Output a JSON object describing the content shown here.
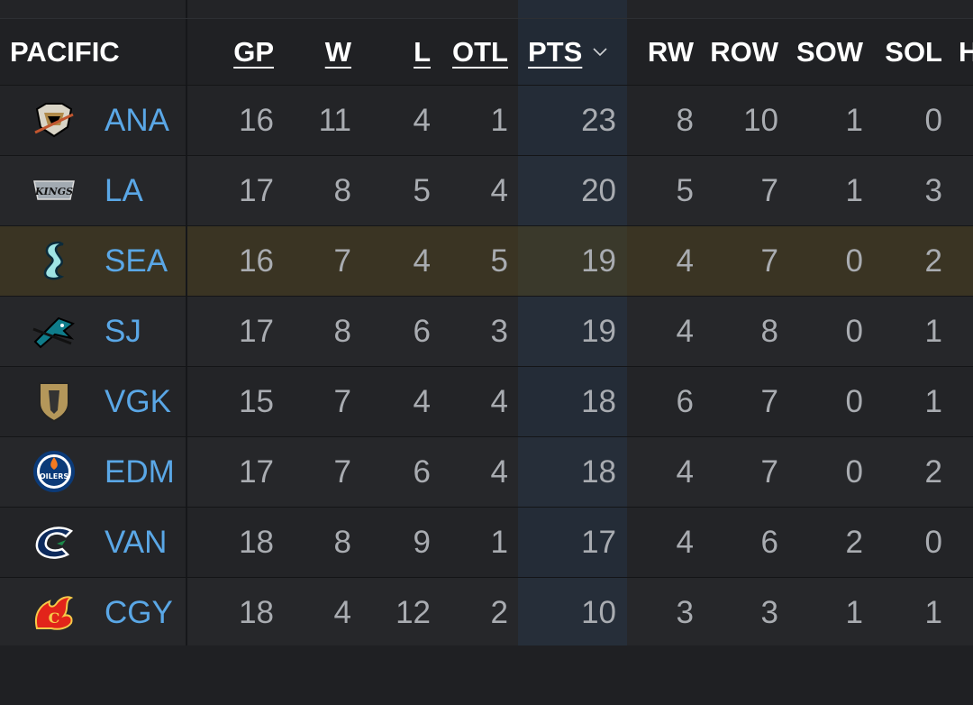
{
  "division": "PACIFIC",
  "columns": {
    "gp": "GP",
    "w": "W",
    "l": "L",
    "otl": "OTL",
    "pts": "PTS",
    "rw": "RW",
    "row": "ROW",
    "sow": "SOW",
    "sol": "SOL",
    "extra": "H"
  },
  "sort_indicator": "chevron-down",
  "colors": {
    "team_link": "#5aa7e6",
    "highlight_row": "#3a3423",
    "background": "#202124"
  },
  "teams": [
    {
      "abbr": "ANA",
      "logo": "ducks-logo",
      "gp": "16",
      "w": "11",
      "l": "4",
      "otl": "1",
      "pts": "23",
      "rw": "8",
      "row": "10",
      "sow": "1",
      "sol": "0"
    },
    {
      "abbr": "LA",
      "logo": "kings-logo",
      "gp": "17",
      "w": "8",
      "l": "5",
      "otl": "4",
      "pts": "20",
      "rw": "5",
      "row": "7",
      "sow": "1",
      "sol": "3"
    },
    {
      "abbr": "SEA",
      "logo": "kraken-logo",
      "gp": "16",
      "w": "7",
      "l": "4",
      "otl": "5",
      "pts": "19",
      "rw": "4",
      "row": "7",
      "sow": "0",
      "sol": "2"
    },
    {
      "abbr": "SJ",
      "logo": "sharks-logo",
      "gp": "17",
      "w": "8",
      "l": "6",
      "otl": "3",
      "pts": "19",
      "rw": "4",
      "row": "8",
      "sow": "0",
      "sol": "1"
    },
    {
      "abbr": "VGK",
      "logo": "golden-knights-logo",
      "gp": "15",
      "w": "7",
      "l": "4",
      "otl": "4",
      "pts": "18",
      "rw": "6",
      "row": "7",
      "sow": "0",
      "sol": "1"
    },
    {
      "abbr": "EDM",
      "logo": "oilers-logo",
      "gp": "17",
      "w": "7",
      "l": "6",
      "otl": "4",
      "pts": "18",
      "rw": "4",
      "row": "7",
      "sow": "0",
      "sol": "2"
    },
    {
      "abbr": "VAN",
      "logo": "canucks-logo",
      "gp": "18",
      "w": "8",
      "l": "9",
      "otl": "1",
      "pts": "17",
      "rw": "4",
      "row": "6",
      "sow": "2",
      "sol": "0"
    },
    {
      "abbr": "CGY",
      "logo": "flames-logo",
      "gp": "18",
      "w": "4",
      "l": "12",
      "otl": "2",
      "pts": "10",
      "rw": "3",
      "row": "3",
      "sow": "1",
      "sol": "1"
    }
  ]
}
